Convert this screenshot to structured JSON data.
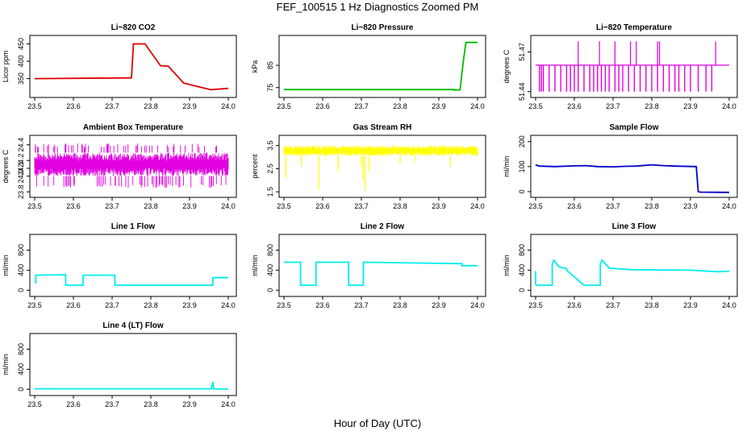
{
  "figure": {
    "title": "FEF_100515  1 Hz Diagnostics Zoomed PM",
    "xlabel": "Hour of Day (UTC)"
  },
  "chart_data": [
    {
      "type": "line",
      "title": "Li−820 CO2",
      "ylabel": "Licor ppm",
      "xlim": [
        23.5,
        24.0
      ],
      "ylim": [
        305,
        465
      ],
      "xticks": [
        "23.5",
        "23.6",
        "23.7",
        "23.8",
        "23.9",
        "24.0"
      ],
      "yticks": [
        {
          "v": 350,
          "label": "350"
        },
        {
          "v": 400,
          "label": "400"
        },
        {
          "v": 450,
          "label": "450"
        }
      ],
      "color": "#e00000",
      "series": [
        {
          "x": [
            23.5,
            23.75,
            23.75,
            23.755,
            23.755,
            23.785,
            23.785,
            23.825,
            23.825,
            23.845,
            23.845,
            23.885,
            23.885,
            23.955,
            23.955,
            24.0
          ],
          "y": [
            350,
            352,
            352,
            450,
            450,
            450,
            450,
            387,
            387,
            386,
            386,
            337,
            337,
            318,
            318,
            322
          ]
        }
      ]
    },
    {
      "type": "line",
      "title": "Li−820 Pressure",
      "ylabel": "kPa",
      "xlim": [
        23.5,
        24.0
      ],
      "ylim": [
        72,
        97
      ],
      "xticks": [
        "23.5",
        "23.6",
        "23.7",
        "23.8",
        "23.9",
        "24.0"
      ],
      "yticks": [
        {
          "v": 75,
          "label": "75"
        },
        {
          "v": 85,
          "label": "85"
        }
      ],
      "color": "#00bb00",
      "series": [
        {
          "x": [
            23.5,
            23.94,
            23.94,
            23.955,
            23.96,
            23.965,
            23.97,
            24.0
          ],
          "y": [
            74.1,
            74.1,
            73.9,
            74.0,
            82,
            89,
            95.3,
            95.3
          ]
        }
      ]
    },
    {
      "type": "line",
      "title": "Li−820 Temperature",
      "ylabel": "degrees C",
      "xlim": [
        23.5,
        24.0
      ],
      "ylim": [
        51.438,
        51.48
      ],
      "xticks": [
        "23.5",
        "23.6",
        "23.7",
        "23.8",
        "23.9",
        "24.0"
      ],
      "yticks": [
        {
          "v": 51.44,
          "label": "51.44"
        },
        {
          "v": 51.47,
          "label": "51.47"
        }
      ],
      "color": "#e000e0",
      "baseline": 51.46,
      "low": 51.44,
      "high": 51.478,
      "drops": [
        23.51,
        23.515,
        23.52,
        23.535,
        23.55,
        23.565,
        23.58,
        23.59,
        23.6,
        23.61,
        23.625,
        23.64,
        23.65,
        23.66,
        23.67,
        23.68,
        23.69,
        23.705,
        23.715,
        23.725,
        23.74,
        23.755,
        23.77,
        23.785,
        23.8,
        23.815,
        23.83,
        23.845,
        23.86,
        23.87,
        23.885,
        23.9,
        23.92,
        23.94,
        23.955
      ],
      "spikes": [
        23.61,
        23.665,
        23.705,
        23.745,
        23.76,
        23.815,
        23.82,
        23.965
      ]
    },
    {
      "type": "line",
      "title": "Ambient Box Temperature",
      "ylabel": "degrees C",
      "xlim": [
        23.5,
        24.0
      ],
      "ylim": [
        23.77,
        24.48
      ],
      "xticks": [
        "23.5",
        "23.6",
        "23.7",
        "23.8",
        "23.9",
        "24.0"
      ],
      "yticks": [
        {
          "v": 23.8,
          "label": "23.8"
        },
        {
          "v": 24.0,
          "label": "24.0"
        },
        {
          "v": 24.1,
          "label": "24.1"
        },
        {
          "v": 24.2,
          "label": "24.2"
        },
        {
          "v": 24.4,
          "label": "24.4"
        }
      ],
      "color": "#e000e0",
      "band": [
        24.0,
        24.3
      ],
      "extremes": [
        23.85,
        24.42
      ]
    },
    {
      "type": "line",
      "title": "Gas Stream RH",
      "ylabel": "percent",
      "xlim": [
        23.5,
        24.0
      ],
      "ylim": [
        1.4,
        3.8
      ],
      "xticks": [
        "23.5",
        "23.6",
        "23.7",
        "23.8",
        "23.9",
        "24.0"
      ],
      "yticks": [
        {
          "v": 1.5,
          "label": "1.5"
        },
        {
          "v": 2.5,
          "label": "2.5"
        },
        {
          "v": 3.5,
          "label": "3.5"
        }
      ],
      "color": "#ffff00",
      "band": [
        3.05,
        3.5
      ],
      "dips": [
        {
          "x": 23.505,
          "y": 2.1
        },
        {
          "x": 23.545,
          "y": 2.6
        },
        {
          "x": 23.59,
          "y": 1.6
        },
        {
          "x": 23.64,
          "y": 2.4
        },
        {
          "x": 23.7,
          "y": 2.6
        },
        {
          "x": 23.705,
          "y": 2.0
        },
        {
          "x": 23.71,
          "y": 1.55
        },
        {
          "x": 23.72,
          "y": 2.4
        },
        {
          "x": 23.8,
          "y": 2.7
        },
        {
          "x": 23.84,
          "y": 2.8
        },
        {
          "x": 23.93,
          "y": 2.6
        }
      ]
    },
    {
      "type": "line",
      "title": "Sample Flow",
      "ylabel": "ml/min",
      "xlim": [
        23.5,
        24.0
      ],
      "ylim": [
        -10,
        212
      ],
      "xticks": [
        "23.5",
        "23.6",
        "23.7",
        "23.8",
        "23.9",
        "24.0"
      ],
      "yticks": [
        {
          "v": 0,
          "label": "0"
        },
        {
          "v": 100,
          "label": "100"
        },
        {
          "v": 200,
          "label": "200"
        }
      ],
      "color": "#0000cc",
      "series": [
        {
          "x": [
            23.5,
            23.51,
            23.55,
            23.6,
            23.63,
            23.66,
            23.7,
            23.73,
            23.76,
            23.8,
            23.83,
            23.86,
            23.915,
            23.92,
            23.925,
            24.0
          ],
          "y": [
            107,
            102,
            100,
            103,
            104,
            100,
            99,
            101,
            102,
            107,
            104,
            102,
            100,
            0,
            -2,
            -3
          ]
        }
      ]
    },
    {
      "type": "line",
      "title": "Line 1 Flow",
      "ylabel": "ml/min",
      "xlim": [
        23.5,
        24.0
      ],
      "ylim": [
        -60,
        1050
      ],
      "xticks": [
        "23.5",
        "23.6",
        "23.7",
        "23.8",
        "23.9",
        "24.0"
      ],
      "yticks": [
        {
          "v": 0,
          "label": "0"
        },
        {
          "v": 400,
          "label": "400"
        },
        {
          "v": 800,
          "label": "800"
        }
      ],
      "color": "#00eeee",
      "series": [
        {
          "x": [
            23.5,
            23.503,
            23.503,
            23.58,
            23.58,
            23.625,
            23.625,
            23.707,
            23.707,
            23.96,
            23.96,
            24.0
          ],
          "y": [
            150,
            150,
            300,
            310,
            100,
            100,
            300,
            300,
            100,
            100,
            250,
            250
          ]
        }
      ]
    },
    {
      "type": "line",
      "title": "Line 2 Flow",
      "ylabel": "ml/min",
      "xlim": [
        23.5,
        24.0
      ],
      "ylim": [
        -60,
        1050
      ],
      "xticks": [
        "23.5",
        "23.6",
        "23.7",
        "23.8",
        "23.9",
        "24.0"
      ],
      "yticks": [
        {
          "v": 0,
          "label": "0"
        },
        {
          "v": 400,
          "label": "400"
        },
        {
          "v": 800,
          "label": "800"
        }
      ],
      "color": "#00eeee",
      "series": [
        {
          "x": [
            23.5,
            23.543,
            23.543,
            23.583,
            23.583,
            23.667,
            23.667,
            23.705,
            23.705,
            23.96,
            23.96,
            24.0
          ],
          "y": [
            560,
            560,
            100,
            100,
            560,
            560,
            100,
            100,
            560,
            530,
            490,
            490
          ]
        }
      ]
    },
    {
      "type": "line",
      "title": "Line 3 Flow",
      "ylabel": "ml/min",
      "xlim": [
        23.5,
        24.0
      ],
      "ylim": [
        -60,
        1050
      ],
      "xticks": [
        "23.5",
        "23.6",
        "23.7",
        "23.8",
        "23.9",
        "24.0"
      ],
      "yticks": [
        {
          "v": 0,
          "label": "0"
        },
        {
          "v": 400,
          "label": "400"
        },
        {
          "v": 800,
          "label": "800"
        }
      ],
      "color": "#00eeee",
      "series": [
        {
          "x": [
            23.5,
            23.5,
            23.503,
            23.543,
            23.543,
            23.547,
            23.56,
            23.58,
            23.58,
            23.625,
            23.625,
            23.667,
            23.667,
            23.672,
            23.69,
            23.75,
            23.9,
            23.97,
            24.0
          ],
          "y": [
            380,
            120,
            100,
            100,
            520,
            600,
            470,
            430,
            400,
            100,
            100,
            100,
            520,
            600,
            440,
            410,
            400,
            370,
            380
          ]
        }
      ]
    },
    {
      "type": "line",
      "title": "Line 4 (LT) Flow",
      "ylabel": "ml/min",
      "xlim": [
        23.5,
        24.0
      ],
      "ylim": [
        -60,
        1050
      ],
      "xticks": [
        "23.5",
        "23.6",
        "23.7",
        "23.8",
        "23.9",
        "24.0"
      ],
      "yticks": [
        {
          "v": 0,
          "label": "0"
        },
        {
          "v": 400,
          "label": "400"
        },
        {
          "v": 800,
          "label": "800"
        }
      ],
      "color": "#00eeee",
      "series": [
        {
          "x": [
            23.5,
            23.956,
            23.958,
            23.96,
            23.962,
            24.0
          ],
          "y": [
            10,
            10,
            60,
            150,
            10,
            5
          ]
        }
      ]
    }
  ]
}
